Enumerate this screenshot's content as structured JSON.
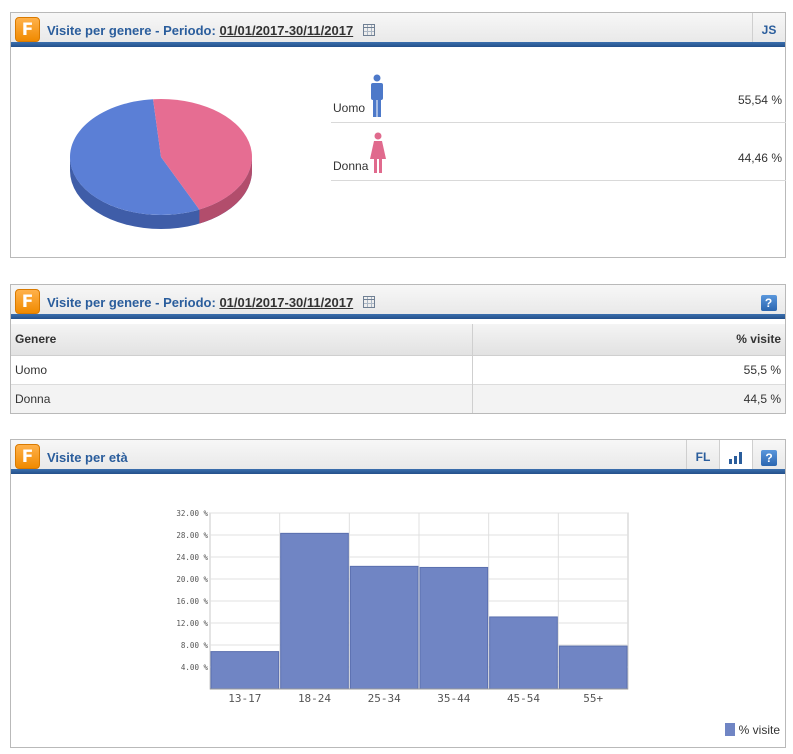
{
  "panel1": {
    "title_prefix": "Visite per genere - Periodo:",
    "date_range": "01/01/2017-30/11/2017",
    "button_js": "JS",
    "rows": [
      {
        "label": "Uomo",
        "value": "55,54 %",
        "icon": "male-icon",
        "color": "#4d79c9"
      },
      {
        "label": "Donna",
        "value": "44,46 %",
        "icon": "female-icon",
        "color": "#e06a8d"
      }
    ],
    "pie": {
      "male_pct": 55.54,
      "female_pct": 44.46,
      "male_color": "#5b7fd6",
      "female_color": "#e66d92"
    }
  },
  "panel2": {
    "title_prefix": "Visite per genere - Periodo:",
    "date_range": "01/01/2017-30/11/2017",
    "help": "?",
    "columns": [
      "Genere",
      "% visite"
    ],
    "rows": [
      {
        "genere": "Uomo",
        "visite": "55,5 %"
      },
      {
        "genere": "Donna",
        "visite": "44,5 %"
      }
    ]
  },
  "panel3": {
    "title": "Visite per età",
    "button_fl": "FL",
    "help": "?",
    "legend": "% visite"
  },
  "chart_data": {
    "type": "bar",
    "categories": [
      "13-17",
      "18-24",
      "25-34",
      "35-44",
      "45-54",
      "55+"
    ],
    "values": [
      6.8,
      28.3,
      22.3,
      22.1,
      13.1,
      7.8
    ],
    "yticks": [
      "4.00 %",
      "8.00 %",
      "12.00 %",
      "16.00 %",
      "20.00 %",
      "24.00 %",
      "28.00 %",
      "32.00 %"
    ],
    "ylim": [
      0,
      32
    ],
    "grid": true,
    "legend": "% visite",
    "bar_color": "#7085c4"
  }
}
